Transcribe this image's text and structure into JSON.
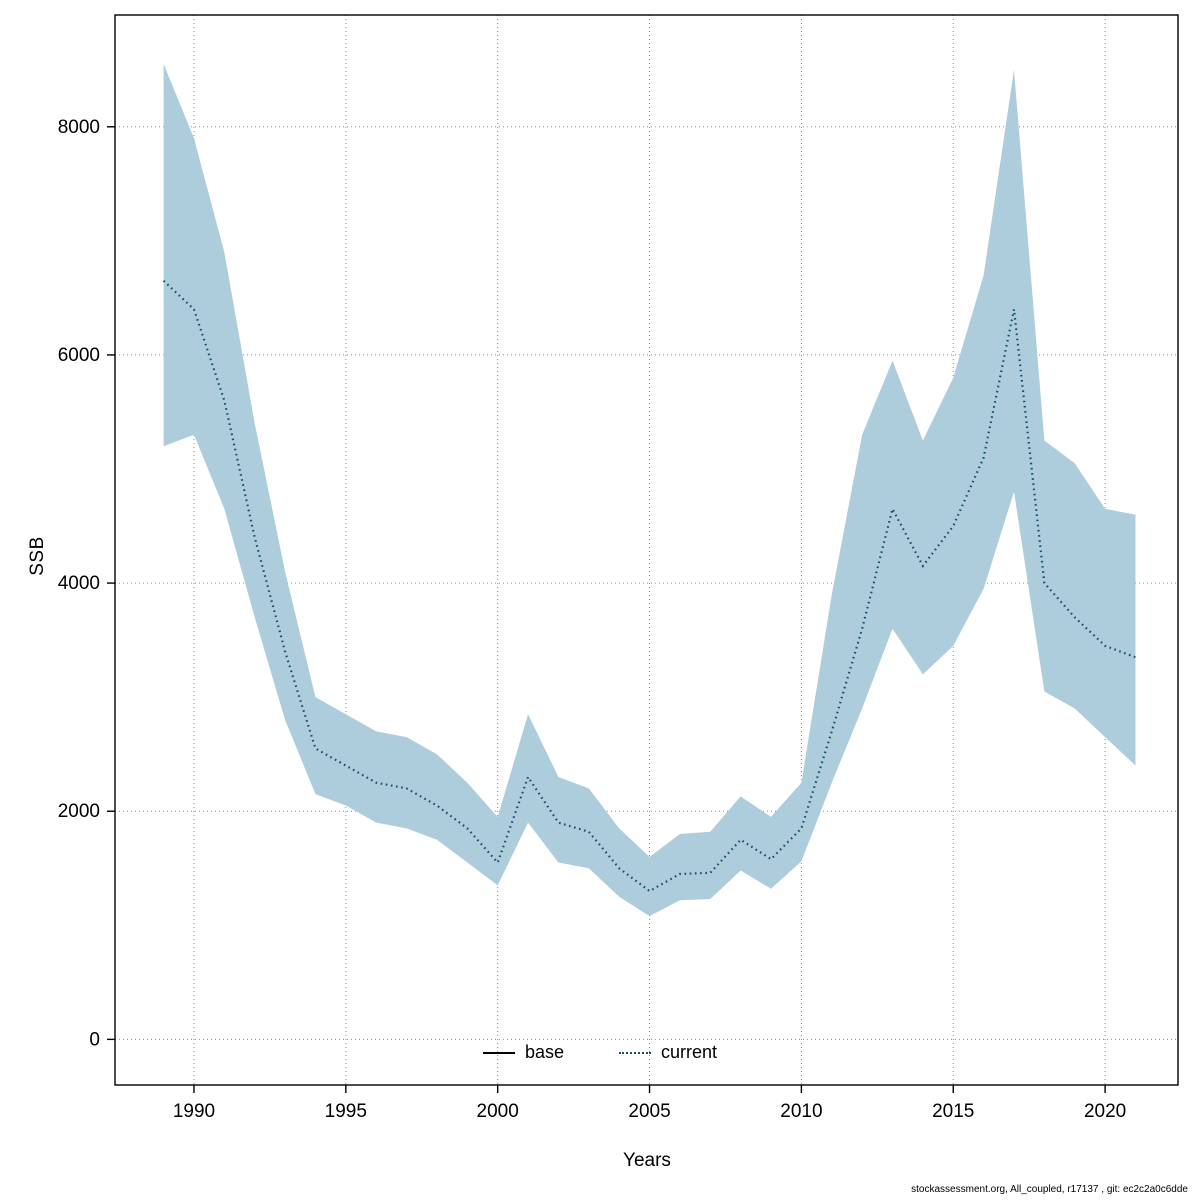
{
  "chart_data": {
    "type": "line",
    "title": "",
    "xlabel": "Years",
    "ylabel": "SSB",
    "xlim": [
      1987.4,
      2022.4
    ],
    "ylim": [
      -400,
      8980
    ],
    "x_ticks": [
      1990,
      1995,
      2000,
      2005,
      2010,
      2015,
      2020
    ],
    "y_ticks": [
      0,
      2000,
      4000,
      6000,
      8000
    ],
    "grid": "dotted",
    "legend_position": "bottom-center-inside",
    "x": [
      1989,
      1990,
      1991,
      1992,
      1993,
      1994,
      1995,
      1996,
      1997,
      1998,
      1999,
      2000,
      2001,
      2002,
      2003,
      2004,
      2005,
      2006,
      2007,
      2008,
      2009,
      2010,
      2011,
      2012,
      2013,
      2014,
      2015,
      2016,
      2017,
      2018,
      2019,
      2020,
      2021
    ],
    "series": [
      {
        "name": "current",
        "style": "dotted",
        "color": "#14506e",
        "values": [
          6650,
          6400,
          5600,
          4400,
          3400,
          2550,
          2400,
          2250,
          2200,
          2050,
          1850,
          1550,
          2300,
          1900,
          1820,
          1500,
          1300,
          1450,
          1460,
          1750,
          1580,
          1850,
          2700,
          3600,
          4650,
          4150,
          4500,
          5100,
          6400,
          4000,
          3700,
          3450,
          3350
        ]
      }
    ],
    "band": {
      "name": "confidence-interval",
      "color": "#a9cadb",
      "lower": [
        5200,
        5300,
        4650,
        3700,
        2800,
        2150,
        2050,
        1900,
        1850,
        1750,
        1550,
        1350,
        1900,
        1550,
        1500,
        1250,
        1080,
        1220,
        1230,
        1480,
        1320,
        1560,
        2250,
        2900,
        3600,
        3200,
        3450,
        3950,
        4800,
        3050,
        2900,
        2650,
        2400
      ],
      "upper": [
        8550,
        7900,
        6900,
        5400,
        4100,
        3000,
        2850,
        2700,
        2650,
        2500,
        2250,
        1950,
        2850,
        2300,
        2200,
        1850,
        1600,
        1800,
        1820,
        2130,
        1950,
        2250,
        3900,
        5300,
        5950,
        5250,
        5800,
        6700,
        8500,
        5250,
        5050,
        4650,
        4600
      ]
    },
    "legend": [
      {
        "label": "base",
        "style": "solid",
        "color": "#000000"
      },
      {
        "label": "current",
        "style": "dotted",
        "color": "#14506e"
      }
    ]
  },
  "footer": {
    "text": "stockassessment.org, All_coupled, r17137 , git: ec2c2a0c6dde"
  }
}
